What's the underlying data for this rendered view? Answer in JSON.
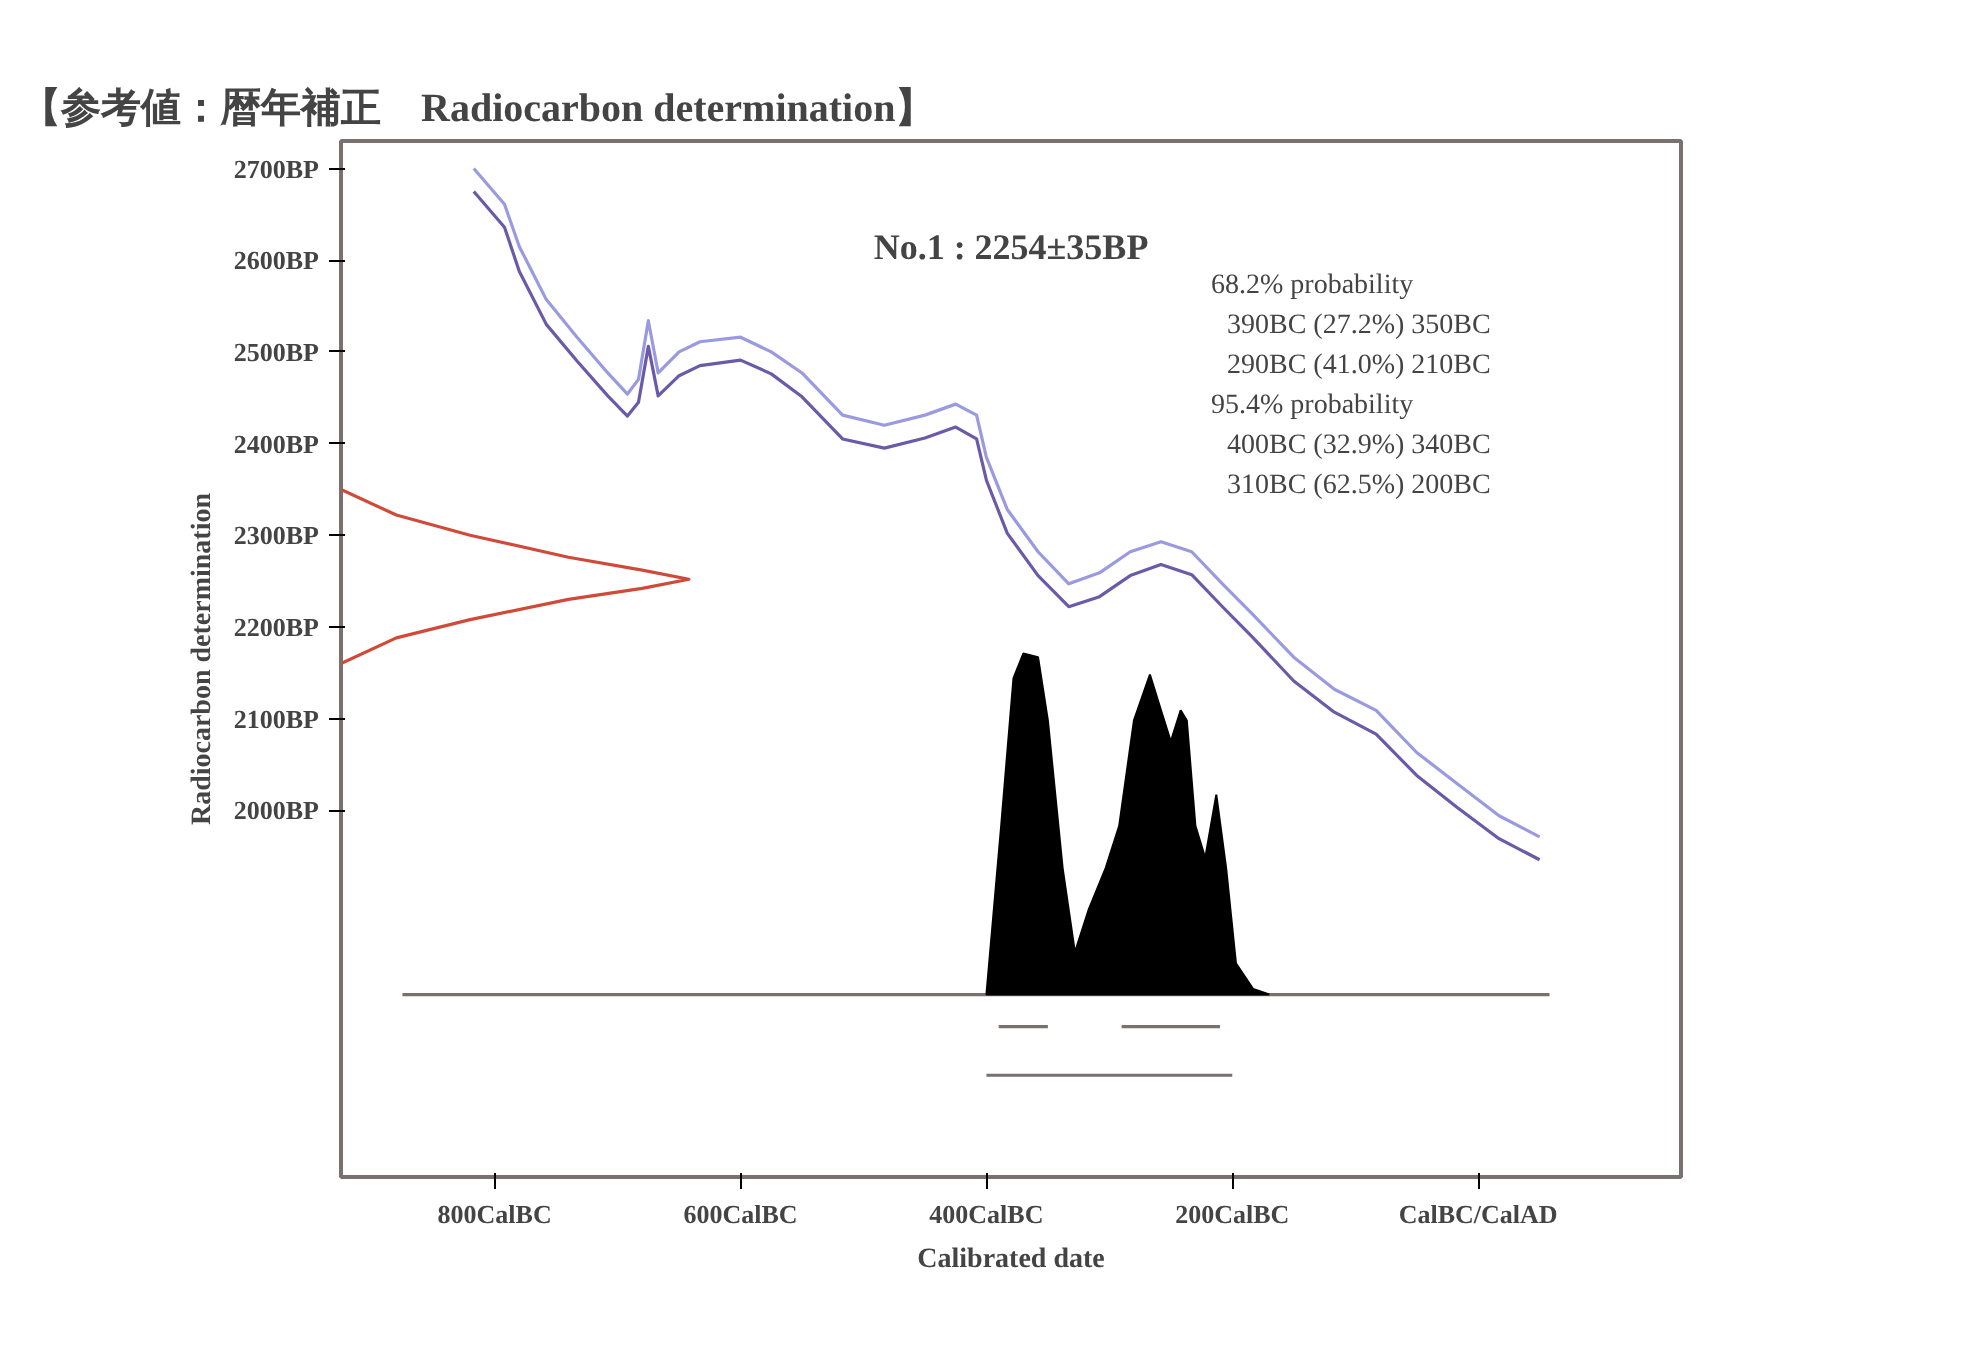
{
  "chart_data": {
    "type": "line",
    "title": "【参考値：暦年補正　Radiocarbon determination】",
    "xlabel": "Calibrated date",
    "ylabel": "Radiocarbon determination",
    "annotations": [
      "No.1 : 2254±35BP",
      "68.2% probability",
      "390BC (27.2%) 350BC",
      "290BC (41.0%) 210BC",
      "95.4% probability",
      "400BC (32.9%) 340BC",
      "310BC (62.5%) 200BC"
    ],
    "xlim": [
      -925,
      165
    ],
    "ylim": [
      1600,
      2730
    ],
    "xticks": [
      {
        "value": -800,
        "label": "800CalBC"
      },
      {
        "value": -600,
        "label": "600CalBC"
      },
      {
        "value": -400,
        "label": "400CalBC"
      },
      {
        "value": -200,
        "label": "200CalBC"
      },
      {
        "value": 0,
        "label": "CalBC/CalAD"
      }
    ],
    "yticks": [
      {
        "value": 2000,
        "label": "2000BP"
      },
      {
        "value": 2100,
        "label": "2100BP"
      },
      {
        "value": 2200,
        "label": "2200BP"
      },
      {
        "value": 2300,
        "label": "2300BP"
      },
      {
        "value": 2400,
        "label": "2400BP"
      },
      {
        "value": 2500,
        "label": "2500BP"
      },
      {
        "value": 2600,
        "label": "2600BP"
      },
      {
        "value": 2700,
        "label": "2700BP"
      }
    ],
    "grid": false,
    "series": [
      {
        "color": "#9a9ae0",
        "x": [
          -817,
          -792,
          -780,
          -758,
          -733,
          -708,
          -692,
          -683,
          -675,
          -667,
          -650,
          -633,
          -600,
          -575,
          -550,
          -517,
          -483,
          -450,
          -425,
          -408,
          -400,
          -383,
          -358,
          -333,
          -308,
          -283,
          -258,
          -233,
          -208,
          -183,
          -150,
          -117,
          -83,
          -50,
          -17,
          17,
          50
        ],
        "values": [
          2700,
          2661,
          2615,
          2557,
          2516,
          2477,
          2454,
          2470,
          2534,
          2477,
          2500,
          2511,
          2516,
          2500,
          2477,
          2431,
          2420,
          2431,
          2443,
          2431,
          2385,
          2328,
          2282,
          2247,
          2259,
          2282,
          2293,
          2282,
          2247,
          2213,
          2167,
          2132,
          2109,
          2063,
          2029,
          1994,
          1971
        ]
      },
      {
        "color": "#6a5aa8",
        "x": [
          -817,
          -792,
          -780,
          -758,
          -733,
          -708,
          -692,
          -683,
          -675,
          -667,
          -650,
          -633,
          -600,
          -575,
          -550,
          -517,
          -483,
          -450,
          -425,
          -408,
          -400,
          -383,
          -358,
          -333,
          -308,
          -283,
          -258,
          -233,
          -208,
          -183,
          -150,
          -117,
          -83,
          -50,
          -17,
          17,
          50
        ],
        "values": [
          2675,
          2636,
          2588,
          2530,
          2490,
          2452,
          2430,
          2445,
          2506,
          2452,
          2474,
          2485,
          2491,
          2476,
          2451,
          2405,
          2395,
          2406,
          2418,
          2405,
          2360,
          2302,
          2256,
          2222,
          2233,
          2256,
          2268,
          2257,
          2222,
          2188,
          2141,
          2107,
          2083,
          2038,
          2003,
          1969,
          1946
        ]
      },
      {
        "color": "#d04a3a",
        "x": [
          -925,
          -880,
          -820,
          -740,
          -680,
          -642,
          -680,
          -740,
          -820,
          -880,
          -925
        ],
        "values": [
          2350,
          2322,
          2300,
          2276,
          2262,
          2252,
          2242,
          2230,
          2208,
          2188,
          2160
        ]
      },
      {
        "color": "#7a7070",
        "x": [
          -875,
          58
        ],
        "values": [
          1799,
          1799
        ]
      },
      {
        "type": "area",
        "color": "#000000",
        "x": [
          -400,
          -388,
          -378,
          -370,
          -358,
          -350,
          -338,
          -328,
          -317,
          -303,
          -292,
          -280,
          -267,
          -258,
          -250,
          -242,
          -237,
          -230,
          -222,
          -213,
          -205,
          -197,
          -183,
          -170
        ],
        "values": [
          1799,
          1983,
          2144,
          2171,
          2167,
          2098,
          1937,
          1845,
          1891,
          1937,
          1983,
          2098,
          2148,
          2109,
          2075,
          2109,
          2098,
          1983,
          1948,
          2017,
          1937,
          1833,
          1805,
          1799
        ]
      },
      {
        "color": "#7a7070",
        "x": [
          -390,
          -350,
          -345,
          -290,
          -210
        ],
        "values": [
          1764,
          1764,
          null,
          1764,
          1764
        ]
      },
      {
        "color": "#7a7070",
        "x": [
          -400,
          -200
        ],
        "values": [
          1711,
          1711
        ]
      }
    ]
  }
}
